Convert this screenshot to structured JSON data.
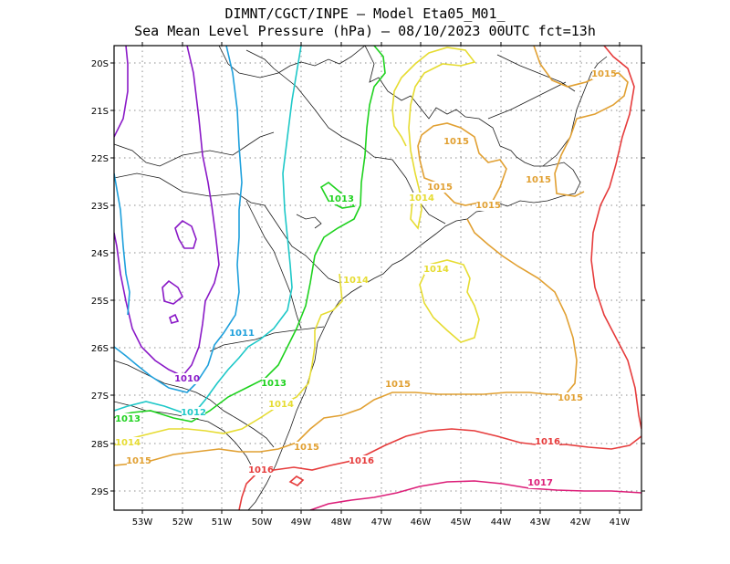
{
  "header": {
    "line1": "DIMNT/CGCT/INPE –  Model Eta05_M01_",
    "line2": "Sea Mean Level Pressure (hPa) – 08/10/2023 00UTC fct=13h"
  },
  "axes": {
    "lat_labels": [
      "20S",
      "21S",
      "22S",
      "23S",
      "24S",
      "25S",
      "26S",
      "27S",
      "28S",
      "29S"
    ],
    "lon_labels": [
      "53W",
      "52W",
      "51W",
      "50W",
      "49W",
      "48W",
      "47W",
      "46W",
      "45W",
      "44W",
      "43W",
      "42W",
      "41W"
    ]
  },
  "colors": {
    "1010": "#8a19c7",
    "1011": "#1ea0dc",
    "1012": "#1ec8c8",
    "1013": "#1ed21e",
    "1014": "#e6dc32",
    "1015": "#e1a032",
    "1016": "#e63c3c",
    "1017": "#dc1e78"
  },
  "contour_labels": [
    {
      "text": "1010",
      "level": "1010"
    },
    {
      "text": "1011",
      "level": "1011"
    },
    {
      "text": "1012",
      "level": "1012"
    },
    {
      "text": "1013",
      "level": "1013"
    },
    {
      "text": "1013",
      "level": "1013"
    },
    {
      "text": "1013",
      "level": "1013"
    },
    {
      "text": "1014",
      "level": "1014"
    },
    {
      "text": "1014",
      "level": "1014"
    },
    {
      "text": "1014",
      "level": "1014"
    },
    {
      "text": "1014",
      "level": "1014"
    },
    {
      "text": "1014",
      "level": "1014"
    },
    {
      "text": "1015",
      "level": "1015"
    },
    {
      "text": "1015",
      "level": "1015"
    },
    {
      "text": "1015",
      "level": "1015"
    },
    {
      "text": "1015",
      "level": "1015"
    },
    {
      "text": "1015",
      "level": "1015"
    },
    {
      "text": "1015",
      "level": "1015"
    },
    {
      "text": "1015",
      "level": "1015"
    },
    {
      "text": "1015",
      "level": "1015"
    },
    {
      "text": "1015",
      "level": "1015"
    },
    {
      "text": "1016",
      "level": "1016"
    },
    {
      "text": "1016",
      "level": "1016"
    },
    {
      "text": "1016",
      "level": "1016"
    },
    {
      "text": "1017",
      "level": "1017"
    }
  ]
}
